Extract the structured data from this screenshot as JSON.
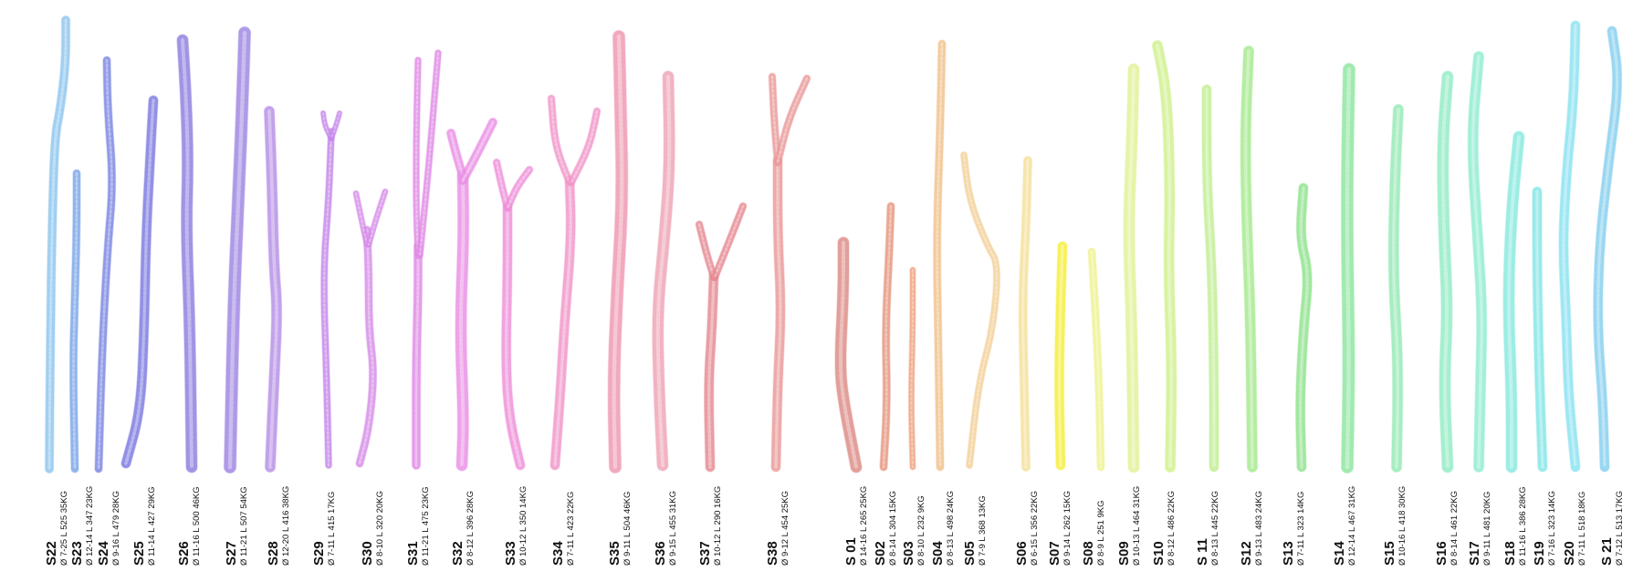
{
  "items": [
    {
      "code": "S22",
      "dims": "Ø 7-25  L 525  35KG",
      "color": "#8ec6ee"
    },
    {
      "code": "S23",
      "dims": "Ø 12-14  L 347  23KG",
      "color": "#7aa6e8"
    },
    {
      "code": "S24",
      "dims": "Ø 9-16  L 479  28KG",
      "color": "#7b86e2"
    },
    {
      "code": "S25",
      "dims": "Ø 11-14  L 427  29KG",
      "color": "#7c7ae0"
    },
    {
      "code": "S26",
      "dims": "Ø 11-16  L 500  46KG",
      "color": "#8e7fe0"
    },
    {
      "code": "S27",
      "dims": "Ø 11-21  L 507  54KG",
      "color": "#9e86e2"
    },
    {
      "code": "S28",
      "dims": "Ø 12-20  L 416  38KG",
      "color": "#b590e6"
    },
    {
      "code": "S29",
      "dims": "Ø 7-11  L 415  17KG",
      "color": "#c486ea"
    },
    {
      "code": "S30",
      "dims": "Ø 8-10  L 320  20KG",
      "color": "#d68ce8"
    },
    {
      "code": "S31",
      "dims": "Ø 11-21  L 475  23KG",
      "color": "#e08ae6"
    },
    {
      "code": "S32",
      "dims": "Ø 8-12  L 396  28KG",
      "color": "#ea90e4"
    },
    {
      "code": "S33",
      "dims": "Ø 10-12  L 350  14KG",
      "color": "#ee90d8"
    },
    {
      "code": "S34",
      "dims": "Ø 7-11  L 423  22KG",
      "color": "#f096c8"
    },
    {
      "code": "S35",
      "dims": "Ø 9-11  L 504  46KG",
      "color": "#ee98b2"
    },
    {
      "code": "S36",
      "dims": "Ø 9-15  L 455  31KG",
      "color": "#eea4b6"
    },
    {
      "code": "S37",
      "dims": "Ø 10-12  L 290  16KG",
      "color": "#e68a92"
    },
    {
      "code": "S38",
      "dims": "Ø 9-12  L 454  25KG",
      "color": "#ea9a98"
    },
    {
      "code": "S 01",
      "dims": "Ø 14-16  L 265  25KG",
      "color": "#dc8c86"
    },
    {
      "code": "S02",
      "dims": "Ø 8-14  L 304  15KG",
      "color": "#e6967e"
    },
    {
      "code": "S03",
      "dims": "Ø 8-10  L 232  9KG",
      "color": "#eda17f"
    },
    {
      "code": "S04",
      "dims": "Ø 8-13  L 498  24KG",
      "color": "#f0c08a"
    },
    {
      "code": "S05",
      "dims": "Ø 7-9  L 368  13KG",
      "color": "#f3d098"
    },
    {
      "code": "S06",
      "dims": "Ø 6-15  L 356  22KG",
      "color": "#f4e09a"
    },
    {
      "code": "S07",
      "dims": "Ø 9-14  L 262  15KG",
      "color": "#f6ee3a"
    },
    {
      "code": "S08",
      "dims": "Ø 8-9  L 251  9KG",
      "color": "#eef290"
    },
    {
      "code": "S09",
      "dims": "Ø 10-13  L 464  31KG",
      "color": "#e0f296"
    },
    {
      "code": "S10",
      "dims": "Ø 8-12  L 486  22KG",
      "color": "#d0f08e"
    },
    {
      "code": "S 11",
      "dims": "Ø 8-13  L 445  22KG",
      "color": "#c2ee94"
    },
    {
      "code": "S12",
      "dims": "Ø 9-13  L 483  24KG",
      "color": "#a6ea8e"
    },
    {
      "code": "S13",
      "dims": "Ø 7-11  L 323  14KG",
      "color": "#90e28e"
    },
    {
      "code": "S14",
      "dims": "Ø 12-14  L 467  31KG",
      "color": "#8ee6a0"
    },
    {
      "code": "S15",
      "dims": "Ø 10-16  L 418  30KG",
      "color": "#96eab4"
    },
    {
      "code": "S16",
      "dims": "Ø 8-14  L 461  22KG",
      "color": "#92ecc4"
    },
    {
      "code": "S17",
      "dims": "Ø 9-11  L 481  20KG",
      "color": "#90ecd0"
    },
    {
      "code": "S18",
      "dims": "Ø 11-16  L 386  28KG",
      "color": "#88eade"
    },
    {
      "code": "S19",
      "dims": "Ø 7-16  L 323  14KG",
      "color": "#84e6e6"
    },
    {
      "code": "S20",
      "dims": "Ø 7-11  L 518  18KG",
      "color": "#8ae2f0"
    },
    {
      "code": "S 21",
      "dims": "Ø 7-12  L 513  17KG",
      "color": "#86cfee"
    }
  ]
}
